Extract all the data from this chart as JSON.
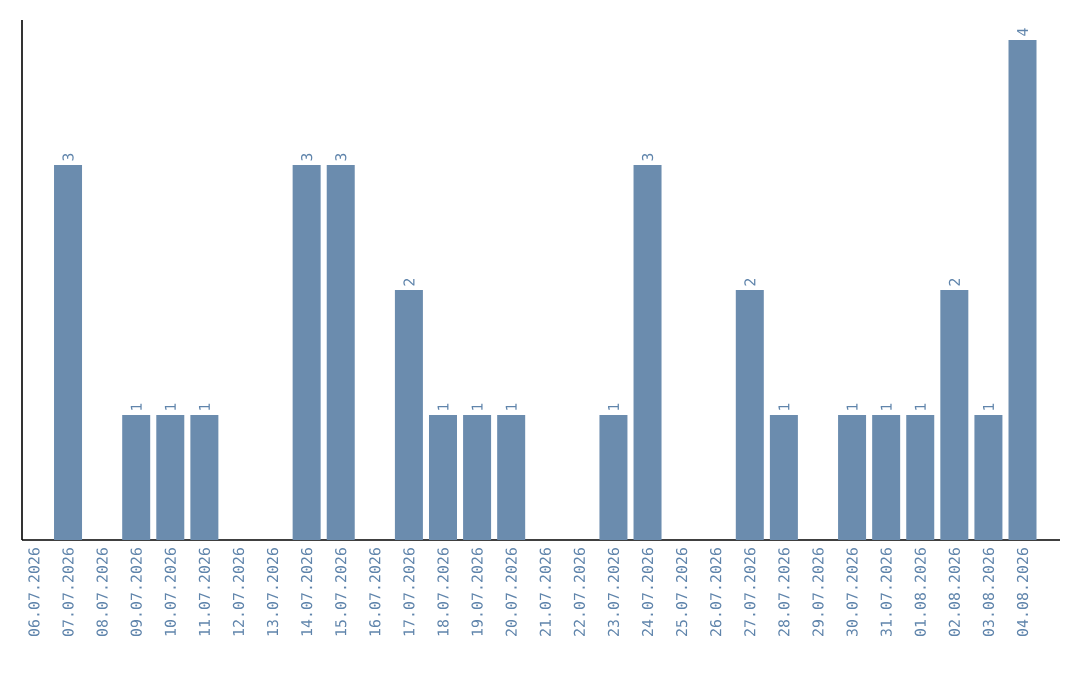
{
  "chart_data": {
    "type": "bar",
    "categories": [
      "06.07.2026",
      "07.07.2026",
      "08.07.2026",
      "09.07.2026",
      "10.07.2026",
      "11.07.2026",
      "12.07.2026",
      "13.07.2026",
      "14.07.2026",
      "15.07.2026",
      "16.07.2026",
      "17.07.2026",
      "18.07.2026",
      "19.07.2026",
      "20.07.2026",
      "21.07.2026",
      "22.07.2026",
      "23.07.2026",
      "24.07.2026",
      "25.07.2026",
      "26.07.2026",
      "27.07.2026",
      "28.07.2026",
      "29.07.2026",
      "30.07.2026",
      "31.07.2026",
      "01.08.2026",
      "02.08.2026",
      "03.08.2026",
      "04.08.2026"
    ],
    "values": [
      0,
      3,
      0,
      1,
      1,
      1,
      0,
      0,
      3,
      3,
      0,
      2,
      1,
      1,
      1,
      0,
      0,
      1,
      3,
      0,
      0,
      2,
      1,
      0,
      1,
      1,
      1,
      2,
      1,
      4
    ],
    "value_labels": [
      null,
      "3",
      null,
      "1",
      "1",
      "1",
      null,
      null,
      "3",
      "3",
      null,
      "2",
      "1",
      "1",
      "1",
      null,
      null,
      "1",
      "3",
      null,
      null,
      "2",
      "1",
      null,
      "1",
      "1",
      "1",
      "2",
      "1",
      "4"
    ],
    "color": "#6b8cae",
    "tick_labels": "x"
  }
}
